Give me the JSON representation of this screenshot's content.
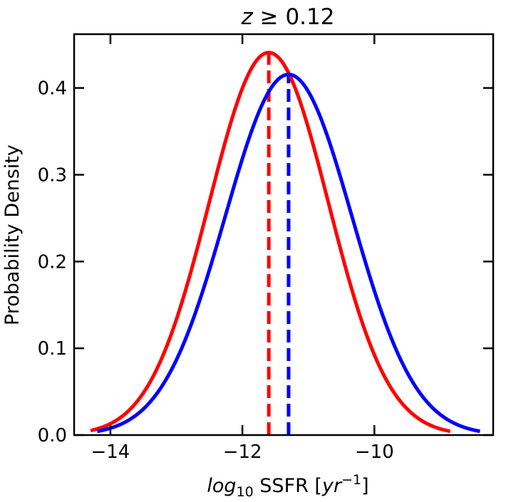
{
  "chart_data": {
    "type": "line",
    "title": "z ≥ 0.12",
    "title_parts": {
      "var": "z",
      "rest": " ≥ 0.12"
    },
    "xlabel": "log10 SSFR [yr−1]",
    "xlabel_parts": {
      "log": "log",
      "sub": "10",
      "mid": " SSFR [",
      "unit": "yr",
      "sup": "−1",
      "end": "]"
    },
    "ylabel": "Probability Density",
    "xlim": [
      -14.55,
      -8.2
    ],
    "ylim": [
      0,
      0.462
    ],
    "xticks": [
      -14,
      -12,
      -10
    ],
    "xtick_labels": [
      "−14",
      "−12",
      "−10"
    ],
    "yticks": [
      0.0,
      0.1,
      0.2,
      0.3,
      0.4
    ],
    "ytick_labels": [
      "0.0",
      "0.1",
      "0.2",
      "0.3",
      "0.4"
    ],
    "grid": false,
    "series": [
      {
        "name": "red-distribution",
        "color": "#ff0000",
        "kind": "gaussian",
        "mean": -11.6,
        "sd": 0.905,
        "x_range": [
          -14.3,
          -8.85
        ]
      },
      {
        "name": "blue-distribution",
        "color": "#0000ff",
        "kind": "gaussian",
        "mean": -11.3,
        "sd": 0.96,
        "x_range": [
          -14.2,
          -8.4
        ]
      }
    ],
    "vlines": [
      {
        "name": "red-mean-line",
        "x": -11.6,
        "color": "#ff0000",
        "style": "dashed"
      },
      {
        "name": "blue-mean-line",
        "x": -11.3,
        "color": "#0000ff",
        "style": "dashed"
      }
    ]
  }
}
